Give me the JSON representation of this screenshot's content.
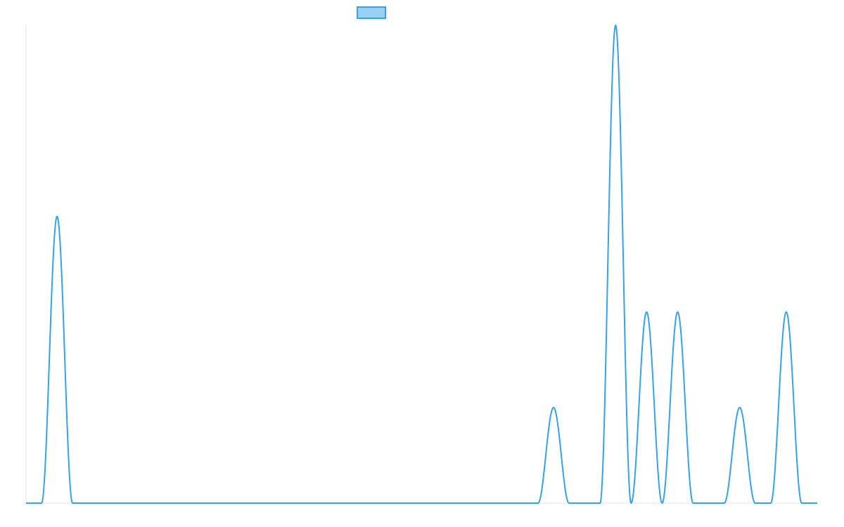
{
  "chart_data": {
    "type": "line",
    "title": "",
    "xlabel": "",
    "ylabel": "",
    "grid": false,
    "legend": {
      "position": "top-center",
      "entries": [
        {
          "name": "",
          "color": "#36a2eb",
          "fill": "#9ad0f5"
        }
      ]
    },
    "series": [
      {
        "name": "",
        "color": "#36a2eb",
        "peaks": [
          {
            "x": 1,
            "y": 3
          },
          {
            "x": 17,
            "y": 1
          },
          {
            "x": 19,
            "y": 5
          },
          {
            "x": 20,
            "y": 2
          },
          {
            "x": 21,
            "y": 2
          },
          {
            "x": 23,
            "y": 1
          },
          {
            "x": 24.5,
            "y": 2
          }
        ]
      }
    ],
    "xlim": [
      0,
      25.5
    ],
    "ylim": [
      0,
      5
    ],
    "baseline": 0,
    "peak_half_width": 0.5
  }
}
